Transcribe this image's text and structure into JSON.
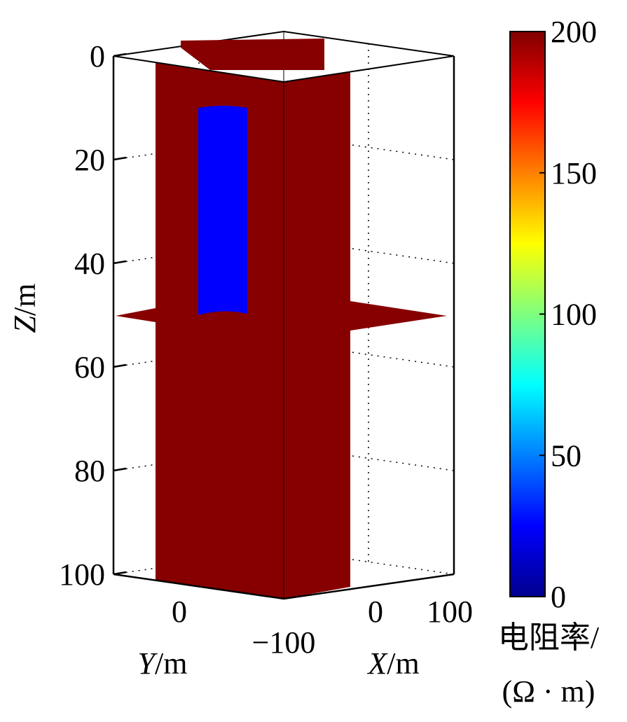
{
  "chart_data": {
    "type": "3d-slice",
    "z_axis": {
      "label_var": "Z",
      "label_unit": "/m",
      "ticks": [
        "0",
        "20",
        "40",
        "60",
        "80",
        "100"
      ],
      "range": [
        0,
        100
      ],
      "reversed": true
    },
    "y_axis": {
      "label_var": "Y",
      "label_unit": "/m",
      "ticks": [
        "0",
        "−100"
      ]
    },
    "x_axis": {
      "label_var": "X",
      "label_unit": "/m",
      "ticks": [
        "0",
        "100"
      ]
    },
    "grid": true,
    "slices": [
      {
        "plane": "vertical-y",
        "value_ohm_m": 200
      },
      {
        "plane": "vertical-x",
        "value_ohm_m": 200
      },
      {
        "plane": "horizontal",
        "z": 50,
        "value_ohm_m": 200
      }
    ],
    "anomaly": {
      "z_top": 10,
      "z_bottom": 50,
      "value_ohm_m": 20
    },
    "colorbar": {
      "colormap": "jet",
      "range": [
        0,
        200
      ],
      "ticks": [
        "0",
        "50",
        "100",
        "150",
        "200"
      ],
      "label_line1": "电阻率/",
      "label_line2": "(Ω · m)"
    },
    "colors": {
      "background_slice": "#870000",
      "anomaly": "#0000ff"
    }
  }
}
